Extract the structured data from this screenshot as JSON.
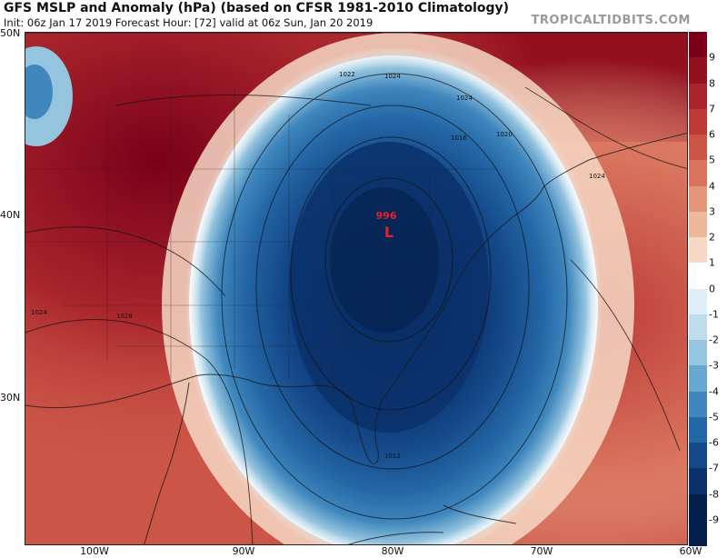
{
  "header": {
    "title": "GFS MSLP and Anomaly (hPa) (based on CFSR 1981-2010 Climatology)",
    "subtitle": "Init: 06z Jan 17 2019   Forecast Hour: [72]   valid at 06z Sun, Jan 20 2019",
    "brand": "TROPICALTIDBITS.COM"
  },
  "axes": {
    "lat_labels": [
      "50N",
      "40N",
      "30N"
    ],
    "lon_labels": [
      "100W",
      "90W",
      "80W",
      "70W",
      "60W"
    ]
  },
  "colorbar": {
    "labels": [
      "9",
      "8",
      "7",
      "6",
      "5",
      "4",
      "3",
      "2",
      "1",
      "0",
      "-1",
      "-2",
      "-3",
      "-4",
      "-5",
      "-6",
      "-7",
      "-8",
      "-9"
    ],
    "colors": [
      "#7a0019",
      "#93101f",
      "#a8252c",
      "#bb3a38",
      "#cb5547",
      "#d9735c",
      "#e49679",
      "#eeb89c",
      "#f6d8c4",
      "#ffffff",
      "#dfeef6",
      "#bfdcec",
      "#95c4df",
      "#68a7cf",
      "#3f87bd",
      "#2467a6",
      "#15498a",
      "#0b316b",
      "#05204d"
    ]
  },
  "map": {
    "low_pressure_value": "996",
    "low_pressure_symbol": "L",
    "isobar_labels": [
      "1024",
      "1024",
      "1022",
      "1020",
      "1016",
      "1024",
      "1024",
      "1028",
      "1012"
    ],
    "low_color": "#e8202a"
  }
}
